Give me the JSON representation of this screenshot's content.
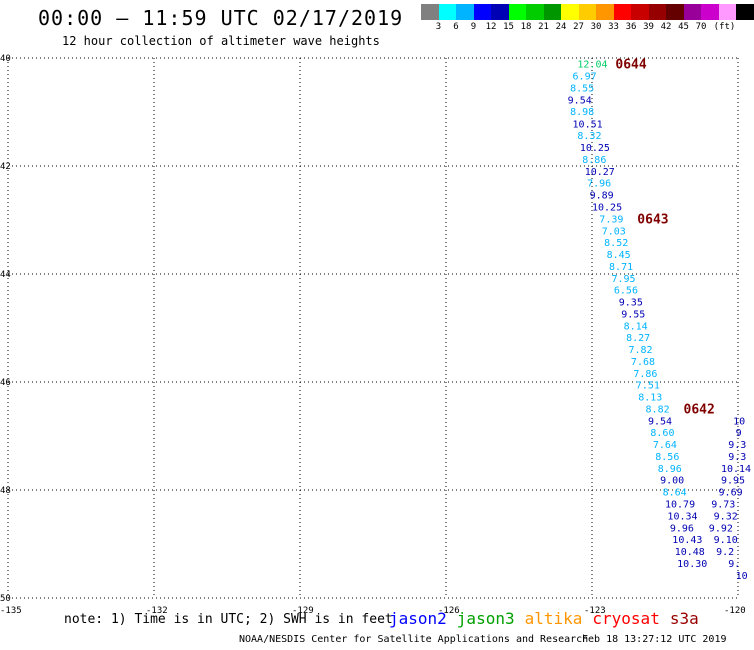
{
  "header": {
    "title": "00:00 – 11:59 UTC 02/17/2019",
    "subtitle": "12 hour collection of altimeter wave heights"
  },
  "scale": {
    "colors": [
      "#808080",
      "#00ffff",
      "#00b4ff",
      "#0000ff",
      "#0000b4",
      "#00ff00",
      "#00cc00",
      "#009600",
      "#ffff00",
      "#ffcc00",
      "#ff9600",
      "#ff0000",
      "#c80000",
      "#960000",
      "#640000",
      "#990099",
      "#cc00cc",
      "#ff99ff",
      "#000000"
    ],
    "labels": [
      "3",
      "6",
      "9",
      "12",
      "15",
      "18",
      "21",
      "24",
      "27",
      "30",
      "33",
      "36",
      "39",
      "42",
      "45",
      "70",
      "(ft)"
    ]
  },
  "axes": {
    "lon_labels": [
      "-135",
      "-132",
      "-129",
      "-126",
      "-123",
      "-120"
    ],
    "lat_labels": [
      "40",
      "42",
      "44",
      "46",
      "48",
      "50"
    ]
  },
  "tracks": [
    {
      "pass": "0644",
      "values": [
        {
          "v": "12.04",
          "c": "#00cc66",
          "lon": -123.3,
          "lat": 40.1
        },
        {
          "v": "6.97",
          "c": "#00b4ff",
          "lon": -123.4,
          "lat": 40.32
        },
        {
          "v": "8.55",
          "c": "#00b4ff",
          "lon": -123.45,
          "lat": 40.55
        },
        {
          "v": "9.54",
          "c": "#0000b4",
          "lon": -123.5,
          "lat": 40.77
        },
        {
          "v": "8.98",
          "c": "#00b4ff",
          "lon": -123.45,
          "lat": 40.98
        },
        {
          "v": "10.51",
          "c": "#0000b4",
          "lon": -123.4,
          "lat": 41.21
        },
        {
          "v": "8.32",
          "c": "#00b4ff",
          "lon": -123.3,
          "lat": 41.43
        },
        {
          "v": "10.25",
          "c": "#0000b4",
          "lon": -123.25,
          "lat": 41.65
        },
        {
          "v": "8.86",
          "c": "#00b4ff",
          "lon": -123.2,
          "lat": 41.87
        },
        {
          "v": "10.27",
          "c": "#0000b4",
          "lon": -123.15,
          "lat": 42.09
        },
        {
          "v": "7.96",
          "c": "#00b4ff",
          "lon": -123.1,
          "lat": 42.31
        },
        {
          "v": "9.89",
          "c": "#0000b4",
          "lon": -123.05,
          "lat": 42.53
        },
        {
          "v": "10.25",
          "c": "#0000b4",
          "lon": -123.0,
          "lat": 42.75
        }
      ]
    },
    {
      "pass": "0643",
      "values": [
        {
          "v": "7.39",
          "c": "#00b4ff",
          "lon": -122.85,
          "lat": 42.97
        },
        {
          "v": "7.03",
          "c": "#00b4ff",
          "lon": -122.8,
          "lat": 43.19
        },
        {
          "v": "8.52",
          "c": "#00b4ff",
          "lon": -122.75,
          "lat": 43.41
        },
        {
          "v": "8.45",
          "c": "#00b4ff",
          "lon": -122.7,
          "lat": 43.63
        },
        {
          "v": "8.71",
          "c": "#00b4ff",
          "lon": -122.65,
          "lat": 43.85
        },
        {
          "v": "7.95",
          "c": "#00b4ff",
          "lon": -122.6,
          "lat": 44.07
        },
        {
          "v": "6.56",
          "c": "#00b4ff",
          "lon": -122.55,
          "lat": 44.29
        },
        {
          "v": "9.35",
          "c": "#0000b4",
          "lon": -122.45,
          "lat": 44.51
        },
        {
          "v": "9.55",
          "c": "#0000b4",
          "lon": -122.4,
          "lat": 44.73
        },
        {
          "v": "8.14",
          "c": "#00b4ff",
          "lon": -122.35,
          "lat": 44.95
        },
        {
          "v": "8.27",
          "c": "#00b4ff",
          "lon": -122.3,
          "lat": 45.17
        },
        {
          "v": "7.82",
          "c": "#00b4ff",
          "lon": -122.25,
          "lat": 45.39
        },
        {
          "v": "7.68",
          "c": "#00b4ff",
          "lon": -122.2,
          "lat": 45.61
        },
        {
          "v": "7.86",
          "c": "#00b4ff",
          "lon": -122.15,
          "lat": 45.83
        },
        {
          "v": "7.51",
          "c": "#00b4ff",
          "lon": -122.1,
          "lat": 46.05
        },
        {
          "v": "8.13",
          "c": "#00b4ff",
          "lon": -122.05,
          "lat": 46.27
        }
      ]
    },
    {
      "pass": "0642",
      "values": [
        {
          "v": "8.82",
          "c": "#00b4ff",
          "lon": -121.9,
          "lat": 46.49
        },
        {
          "v": "9.54",
          "c": "#0000b4",
          "lon": -121.85,
          "lat": 46.71
        },
        {
          "v": "8.60",
          "c": "#00b4ff",
          "lon": -121.8,
          "lat": 46.93
        },
        {
          "v": "7.64",
          "c": "#00b4ff",
          "lon": -121.75,
          "lat": 47.15
        },
        {
          "v": "8.56",
          "c": "#00b4ff",
          "lon": -121.7,
          "lat": 47.37
        },
        {
          "v": "8.96",
          "c": "#00b4ff",
          "lon": -121.65,
          "lat": 47.59
        },
        {
          "v": "9.00",
          "c": "#0000b4",
          "lon": -121.6,
          "lat": 47.81
        },
        {
          "v": "8.64",
          "c": "#00b4ff",
          "lon": -121.55,
          "lat": 48.03
        },
        {
          "v": "10.79",
          "c": "#0000b4",
          "lon": -121.5,
          "lat": 48.25
        },
        {
          "v": "10.34",
          "c": "#0000b4",
          "lon": -121.45,
          "lat": 48.47
        },
        {
          "v": "9.96",
          "c": "#0000b4",
          "lon": -121.4,
          "lat": 48.69
        },
        {
          "v": "10.43",
          "c": "#0000b4",
          "lon": -121.35,
          "lat": 48.91
        },
        {
          "v": "10.48",
          "c": "#0000b4",
          "lon": -121.3,
          "lat": 49.13
        },
        {
          "v": "10.30",
          "c": "#0000b4",
          "lon": -121.25,
          "lat": 49.35
        }
      ]
    },
    {
      "pass": "",
      "values": [
        {
          "v": "10",
          "c": "#0000b4",
          "lon": -120.1,
          "lat": 46.71
        },
        {
          "v": "9",
          "c": "#0000b4",
          "lon": -120.05,
          "lat": 46.93
        },
        {
          "v": "9.3",
          "c": "#0000b4",
          "lon": -120.2,
          "lat": 47.15
        },
        {
          "v": "9.3",
          "c": "#0000b4",
          "lon": -120.2,
          "lat": 47.37
        },
        {
          "v": "10.14",
          "c": "#0000b4",
          "lon": -120.35,
          "lat": 47.59
        },
        {
          "v": "9.95",
          "c": "#0000b4",
          "lon": -120.35,
          "lat": 47.81
        },
        {
          "v": "9.69",
          "c": "#0000b4",
          "lon": -120.4,
          "lat": 48.03
        },
        {
          "v": "9.73",
          "c": "#0000b4",
          "lon": -120.55,
          "lat": 48.25
        },
        {
          "v": "9.32",
          "c": "#0000b4",
          "lon": -120.5,
          "lat": 48.47
        },
        {
          "v": "9.92",
          "c": "#0000b4",
          "lon": -120.6,
          "lat": 48.69
        },
        {
          "v": "9.10",
          "c": "#0000b4",
          "lon": -120.5,
          "lat": 48.91
        },
        {
          "v": "9.2",
          "c": "#0000b4",
          "lon": -120.45,
          "lat": 49.13
        },
        {
          "v": "9.",
          "c": "#0000b4",
          "lon": -120.2,
          "lat": 49.35
        },
        {
          "v": "10",
          "c": "#0000b4",
          "lon": -120.05,
          "lat": 49.57
        }
      ]
    }
  ],
  "note": "note: 1) Time is in UTC; 2) SWH is in feet",
  "legend": [
    {
      "name": "jason2",
      "color": "#0000ff"
    },
    {
      "name": "jason3",
      "color": "#00a000"
    },
    {
      "name": "altika",
      "color": "#ff9600"
    },
    {
      "name": "cryosat",
      "color": "#ff0000"
    },
    {
      "name": "s3a",
      "color": "#990000"
    }
  ],
  "footer": {
    "credit": "NOAA/NESDIS Center for Satellite Applications and Research",
    "timestamp": "Feb 18 13:27:12 UTC 2019"
  }
}
